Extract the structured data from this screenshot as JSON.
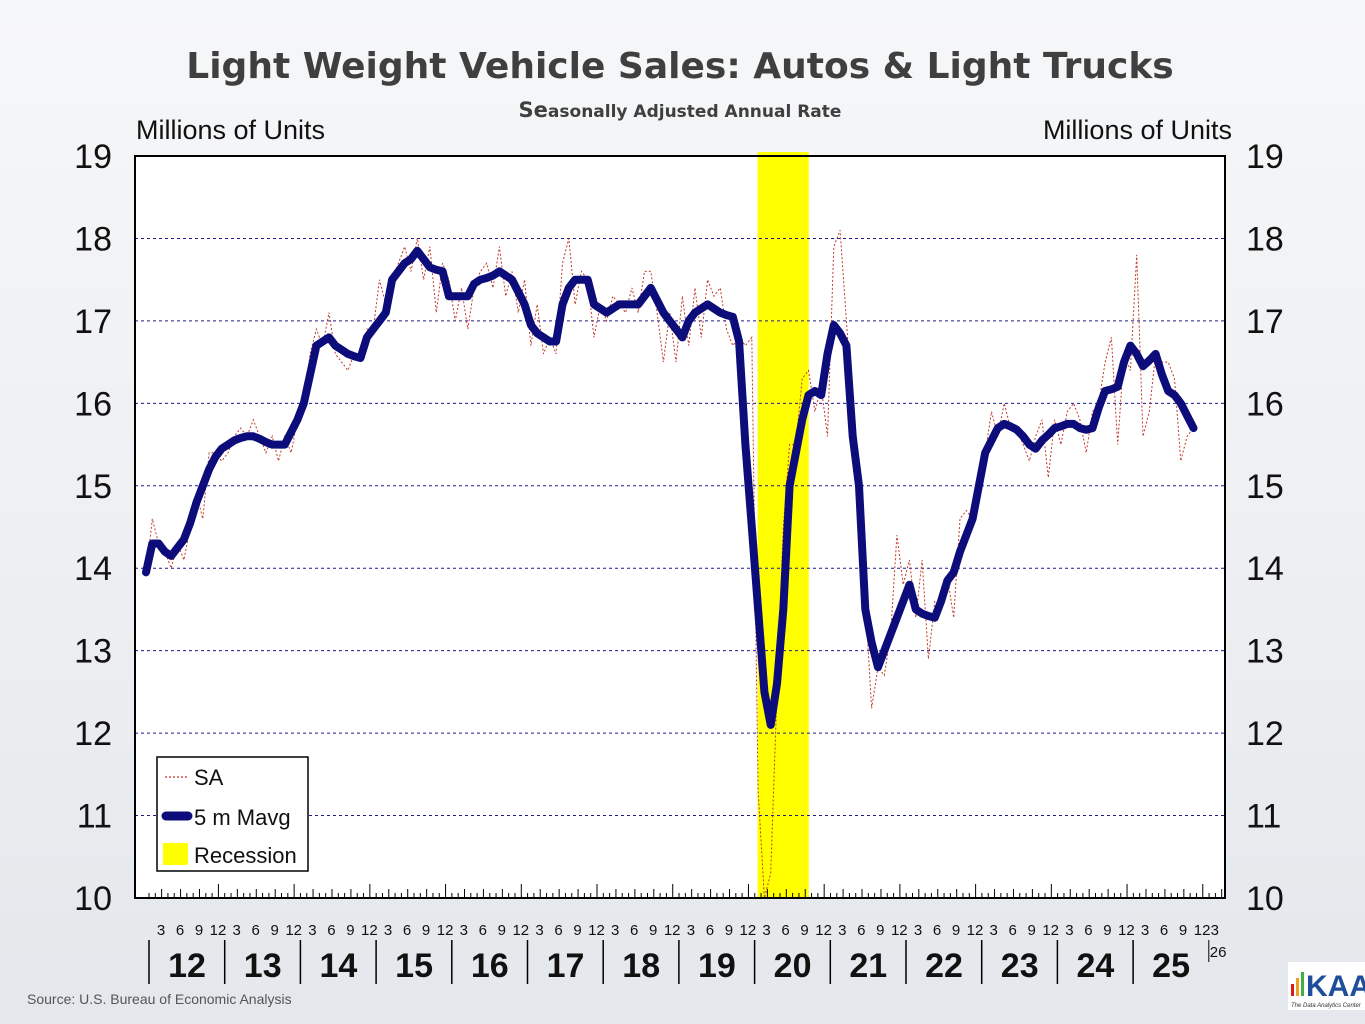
{
  "chart_data": {
    "type": "line",
    "title": "Light Weight Vehicle Sales: Autos & Light Trucks",
    "subtitle_lead": "Se",
    "subtitle_rest": "asonally Adjusted Annual Rate",
    "ylabel_left": "Millions of Units",
    "ylabel_right": "Millions of Units",
    "ylim": [
      10,
      19
    ],
    "yticks": [
      "10",
      "11",
      "12",
      "13",
      "14",
      "15",
      "16",
      "17",
      "18",
      "19"
    ],
    "grid": true,
    "x_start": "2012-01",
    "x_frequency": "monthly",
    "month_tick_labels": [
      "3",
      "6",
      "9",
      "12"
    ],
    "year_labels": [
      "12",
      "13",
      "14",
      "15",
      "16",
      "17",
      "18",
      "19",
      "20",
      "21",
      "22",
      "23",
      "24",
      "25"
    ],
    "next_year_label": "26",
    "next_year_month_label": "3",
    "legend_position": "bottom-left",
    "legend": {
      "sa": "SA",
      "mavg": "5 m Mavg",
      "recession": "Recession"
    },
    "recession": {
      "start": "2020-02",
      "end": "2020-09"
    },
    "series": [
      {
        "name": "SA",
        "color": "#c0392b",
        "values": [
          13.9,
          14.6,
          14.3,
          14.2,
          14.0,
          14.3,
          14.1,
          14.5,
          14.9,
          14.6,
          15.4,
          15.4,
          15.3,
          15.4,
          15.6,
          15.7,
          15.6,
          15.8,
          15.6,
          15.4,
          15.6,
          15.3,
          15.6,
          15.4,
          15.8,
          16.0,
          16.6,
          16.9,
          16.7,
          17.1,
          16.6,
          16.5,
          16.4,
          16.6,
          16.5,
          16.9,
          16.9,
          17.5,
          17.2,
          17.5,
          17.7,
          17.9,
          17.6,
          18.0,
          17.5,
          17.9,
          17.1,
          17.7,
          17.5,
          17.0,
          17.4,
          16.9,
          17.4,
          17.6,
          17.7,
          17.4,
          17.9,
          17.3,
          17.6,
          17.1,
          17.5,
          16.7,
          17.2,
          16.6,
          16.8,
          16.6,
          17.7,
          18.0,
          17.2,
          17.6,
          17.5,
          16.8,
          17.2,
          17.0,
          17.3,
          17.2,
          17.1,
          17.4,
          17.1,
          17.6,
          17.6,
          17.1,
          16.5,
          17.1,
          16.5,
          17.3,
          16.7,
          17.4,
          16.8,
          17.5,
          17.3,
          17.4,
          16.9,
          16.7,
          16.8,
          16.7,
          16.8,
          11.3,
          10.0,
          10.3,
          12.5,
          14.5,
          15.5,
          15.5,
          16.3,
          16.4,
          15.9,
          16.2,
          15.6,
          17.9,
          18.1,
          17.0,
          15.9,
          14.3,
          13.6,
          12.3,
          12.8,
          12.7,
          13.2,
          14.4,
          13.8,
          14.1,
          13.4,
          14.1,
          12.9,
          13.6,
          13.6,
          13.9,
          13.4,
          14.6,
          14.7,
          14.6,
          15.0,
          15.4,
          15.9,
          15.6,
          16.0,
          15.7,
          15.7,
          15.5,
          15.3,
          15.6,
          15.8,
          15.1,
          15.8,
          15.5,
          15.9,
          16.0,
          15.8,
          15.4,
          15.9,
          16.0,
          16.5,
          16.8,
          15.5,
          16.6,
          16.4,
          17.8,
          15.6,
          15.9,
          16.6,
          16.5,
          16.5,
          16.3,
          15.3,
          15.6,
          15.7
        ]
      },
      {
        "name": "5 m Mavg",
        "color": "#0c0c7a",
        "values": [
          13.95,
          14.3,
          14.3,
          14.2,
          14.15,
          14.25,
          14.35,
          14.55,
          14.8,
          15.0,
          15.2,
          15.35,
          15.45,
          15.5,
          15.55,
          15.58,
          15.6,
          15.6,
          15.57,
          15.53,
          15.5,
          15.5,
          15.5,
          15.65,
          15.8,
          16.0,
          16.35,
          16.7,
          16.75,
          16.8,
          16.7,
          16.65,
          16.6,
          16.57,
          16.55,
          16.8,
          16.9,
          17.0,
          17.1,
          17.5,
          17.6,
          17.7,
          17.75,
          17.85,
          17.75,
          17.65,
          17.62,
          17.6,
          17.3,
          17.3,
          17.3,
          17.3,
          17.45,
          17.5,
          17.52,
          17.55,
          17.6,
          17.55,
          17.5,
          17.35,
          17.2,
          16.95,
          16.85,
          16.8,
          16.75,
          16.75,
          17.2,
          17.4,
          17.5,
          17.5,
          17.5,
          17.2,
          17.15,
          17.1,
          17.15,
          17.2,
          17.2,
          17.2,
          17.2,
          17.3,
          17.4,
          17.25,
          17.1,
          17.0,
          16.9,
          16.8,
          17.0,
          17.1,
          17.15,
          17.2,
          17.15,
          17.1,
          17.07,
          17.05,
          16.75,
          15.5,
          14.5,
          13.5,
          12.5,
          12.1,
          12.6,
          13.5,
          15.0,
          15.4,
          15.8,
          16.1,
          16.15,
          16.1,
          16.6,
          16.95,
          16.85,
          16.7,
          15.6,
          15.0,
          13.5,
          13.1,
          12.8,
          13.0,
          13.2,
          13.4,
          13.6,
          13.8,
          13.5,
          13.45,
          13.42,
          13.4,
          13.6,
          13.85,
          13.95,
          14.2,
          14.4,
          14.6,
          15.0,
          15.4,
          15.55,
          15.7,
          15.75,
          15.72,
          15.68,
          15.6,
          15.5,
          15.45,
          15.55,
          15.62,
          15.7,
          15.72,
          15.75,
          15.75,
          15.7,
          15.68,
          15.7,
          15.95,
          16.15,
          16.17,
          16.2,
          16.5,
          16.7,
          16.6,
          16.45,
          16.52,
          16.6,
          16.35,
          16.15,
          16.1,
          16.0,
          15.85,
          15.7
        ]
      }
    ],
    "recession_color": "#ffff00",
    "source": "Source: U.S. Bureau of Economic Analysis",
    "logo_text": "KAA",
    "logo_tagline": "The Data Analytics Center"
  }
}
